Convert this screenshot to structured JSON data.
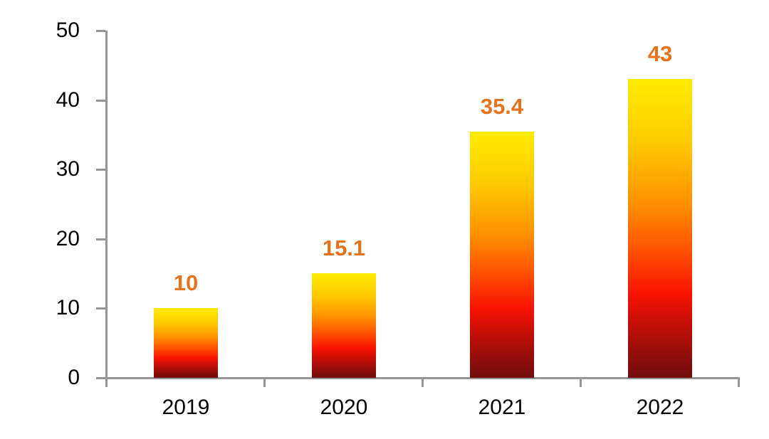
{
  "chart_data": {
    "type": "bar",
    "title": "",
    "xlabel": "",
    "ylabel": "",
    "categories": [
      "2019",
      "2020",
      "2021",
      "2022"
    ],
    "values": [
      10,
      15.1,
      35.4,
      43
    ],
    "data_labels": [
      "10",
      "15.1",
      "35.4",
      "43"
    ],
    "ylim": [
      0,
      50
    ],
    "yticks": [
      0,
      10,
      20,
      30,
      40,
      50
    ],
    "ytick_labels": [
      "0",
      "10",
      "20",
      "30",
      "40",
      "50"
    ],
    "grid": "off",
    "legend": "none",
    "colors": {
      "data_label": "#E5731C",
      "axis": "#959595",
      "tick_label": "#000000",
      "background": "#FFFFFF",
      "bar_gradient_stops": [
        {
          "color": "#FFEC00",
          "pos": 0
        },
        {
          "color": "#FFC800",
          "pos": 22
        },
        {
          "color": "#FF9000",
          "pos": 42
        },
        {
          "color": "#FF4E00",
          "pos": 58
        },
        {
          "color": "#F81300",
          "pos": 72
        },
        {
          "color": "#BE0E08",
          "pos": 83
        },
        {
          "color": "#6F0D0D",
          "pos": 100
        }
      ]
    }
  }
}
